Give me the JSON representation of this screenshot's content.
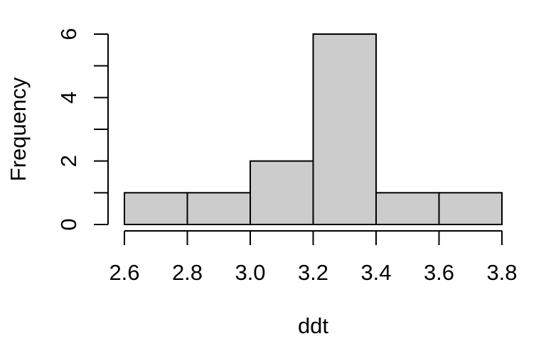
{
  "page": {
    "background": "#FFFFFF"
  },
  "chart_data": {
    "type": "bar",
    "subtype": "histogram",
    "title": "",
    "xlabel": "ddt",
    "ylabel": "Frequency",
    "bin_edges": [
      2.6,
      2.8,
      3.0,
      3.2,
      3.4,
      3.6,
      3.8
    ],
    "counts": [
      1,
      1,
      2,
      6,
      1,
      1
    ],
    "xlim": [
      2.6,
      3.8
    ],
    "ylim": [
      0,
      6
    ],
    "x_ticks": [
      2.6,
      2.8,
      3.0,
      3.2,
      3.4,
      3.6,
      3.8
    ],
    "x_tick_labels": [
      "2.6",
      "2.8",
      "3.0",
      "3.2",
      "3.4",
      "3.6",
      "3.8"
    ],
    "y_ticks": [
      0,
      1,
      2,
      3,
      4,
      5,
      6
    ],
    "y_labeled_ticks": [
      0,
      2,
      4,
      6
    ],
    "y_tick_labels": [
      "0",
      "2",
      "4",
      "6"
    ],
    "grid": false,
    "legend": null,
    "colors": {
      "bar_fill": "#CCCCCC",
      "bar_stroke": "#000000",
      "axis": "#000000",
      "text": "#000000"
    }
  }
}
